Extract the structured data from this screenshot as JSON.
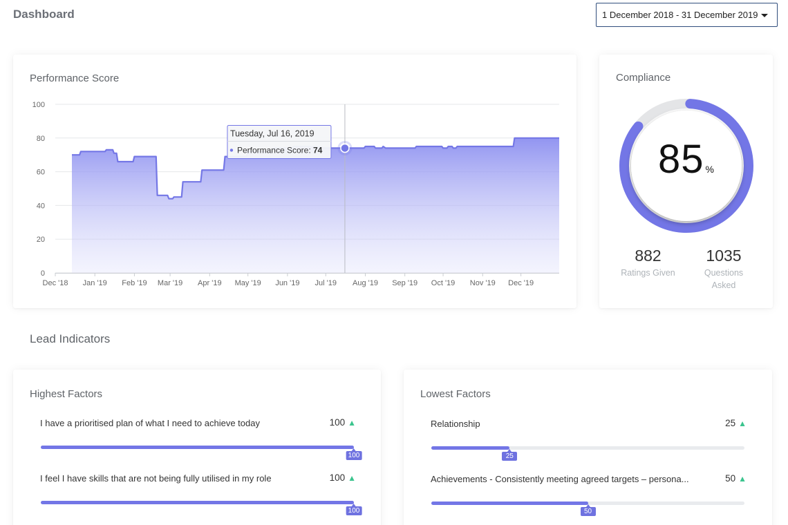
{
  "header": {
    "title": "Dashboard",
    "date_range": "1 December 2018 - 31 December 2019"
  },
  "performance": {
    "title": "Performance Score",
    "tooltip": {
      "date": "Tuesday, Jul 16, 2019",
      "series_label": "Performance Score:",
      "value": "74"
    }
  },
  "chart_data": {
    "type": "area",
    "title": "Performance Score",
    "xlabel": "",
    "ylabel": "",
    "ylim": [
      0,
      100
    ],
    "y_ticks": [
      "0",
      "20",
      "40",
      "60",
      "80",
      "100"
    ],
    "x_range": [
      "2018-12-01",
      "2019-12-31"
    ],
    "x_tick_labels": [
      {
        "label": "Dec '18",
        "date": "2018-12-01"
      },
      {
        "label": "Jan '19",
        "date": "2019-01-01"
      },
      {
        "label": "Feb '19",
        "date": "2019-02-01"
      },
      {
        "label": "Mar '19",
        "date": "2019-03-01"
      },
      {
        "label": "Apr '19",
        "date": "2019-04-01"
      },
      {
        "label": "May '19",
        "date": "2019-05-01"
      },
      {
        "label": "Jun '19",
        "date": "2019-06-01"
      },
      {
        "label": "Jul '19",
        "date": "2019-07-01"
      },
      {
        "label": "Aug '19",
        "date": "2019-08-01"
      },
      {
        "label": "Sep '19",
        "date": "2019-09-01"
      },
      {
        "label": "Oct '19",
        "date": "2019-10-01"
      },
      {
        "label": "Nov '19",
        "date": "2019-11-01"
      },
      {
        "label": "Dec '19",
        "date": "2019-12-01"
      }
    ],
    "grid": true,
    "legend": "none",
    "series": [
      {
        "color": "#7477e6",
        "points": [
          [
            "2018-12-14",
            70
          ],
          [
            "2018-12-20",
            70
          ],
          [
            "2018-12-21",
            72
          ],
          [
            "2019-01-09",
            72
          ],
          [
            "2019-01-10",
            73
          ],
          [
            "2019-01-15",
            73
          ],
          [
            "2019-01-16",
            71
          ],
          [
            "2019-01-18",
            71
          ],
          [
            "2019-01-19",
            66
          ],
          [
            "2019-01-31",
            66
          ],
          [
            "2019-02-01",
            69
          ],
          [
            "2019-02-18",
            69
          ],
          [
            "2019-02-19",
            46
          ],
          [
            "2019-02-27",
            46
          ],
          [
            "2019-02-28",
            44
          ],
          [
            "2019-03-03",
            44
          ],
          [
            "2019-03-04",
            45
          ],
          [
            "2019-03-10",
            45
          ],
          [
            "2019-03-11",
            54
          ],
          [
            "2019-03-25",
            54
          ],
          [
            "2019-03-26",
            61
          ],
          [
            "2019-04-12",
            61
          ],
          [
            "2019-04-13",
            69
          ],
          [
            "2019-04-30",
            69
          ],
          [
            "2019-05-01",
            72
          ],
          [
            "2019-05-20",
            72
          ],
          [
            "2019-05-21",
            74
          ],
          [
            "2019-06-05",
            74
          ],
          [
            "2019-06-06",
            75
          ],
          [
            "2019-06-20",
            75
          ],
          [
            "2019-07-01",
            74
          ],
          [
            "2019-07-16",
            74
          ],
          [
            "2019-07-31",
            74
          ],
          [
            "2019-08-01",
            75
          ],
          [
            "2019-08-08",
            75
          ],
          [
            "2019-08-09",
            74
          ],
          [
            "2019-08-14",
            74
          ],
          [
            "2019-08-15",
            75
          ],
          [
            "2019-08-17",
            74
          ],
          [
            "2019-09-09",
            74
          ],
          [
            "2019-09-10",
            75
          ],
          [
            "2019-09-30",
            75
          ],
          [
            "2019-10-01",
            74
          ],
          [
            "2019-10-04",
            74
          ],
          [
            "2019-10-05",
            75
          ],
          [
            "2019-10-08",
            75
          ],
          [
            "2019-10-09",
            74
          ],
          [
            "2019-10-11",
            74
          ],
          [
            "2019-10-12",
            75
          ],
          [
            "2019-11-25",
            75
          ],
          [
            "2019-11-26",
            80
          ],
          [
            "2019-12-31",
            80
          ]
        ]
      }
    ],
    "highlight": {
      "date": "2019-07-16",
      "value": 74
    }
  },
  "compliance": {
    "title": "Compliance",
    "percent": 85,
    "percent_text": "85",
    "percent_symbol": "%",
    "ratings_value": "882",
    "ratings_label": "Ratings Given",
    "questions_value": "1035",
    "questions_label": "Questions Asked"
  },
  "lead": {
    "title": "Lead Indicators",
    "highest": {
      "title": "Highest Factors",
      "items": [
        {
          "label": "I have a prioritised plan of what I need to achieve today",
          "score": "100",
          "value": 100
        },
        {
          "label": "I feel I have skills that are not being fully utilised in my role",
          "score": "100",
          "value": 100
        }
      ]
    },
    "lowest": {
      "title": "Lowest Factors",
      "items": [
        {
          "label": "Relationship",
          "score": "25",
          "value": 25
        },
        {
          "label": "Achievements - Consistently meeting agreed targets – persona...",
          "score": "50",
          "value": 50
        }
      ]
    },
    "trend_icon": "triangle-up-icon",
    "trend_color": "#3bc48e",
    "bar_color": "#7376e6"
  }
}
